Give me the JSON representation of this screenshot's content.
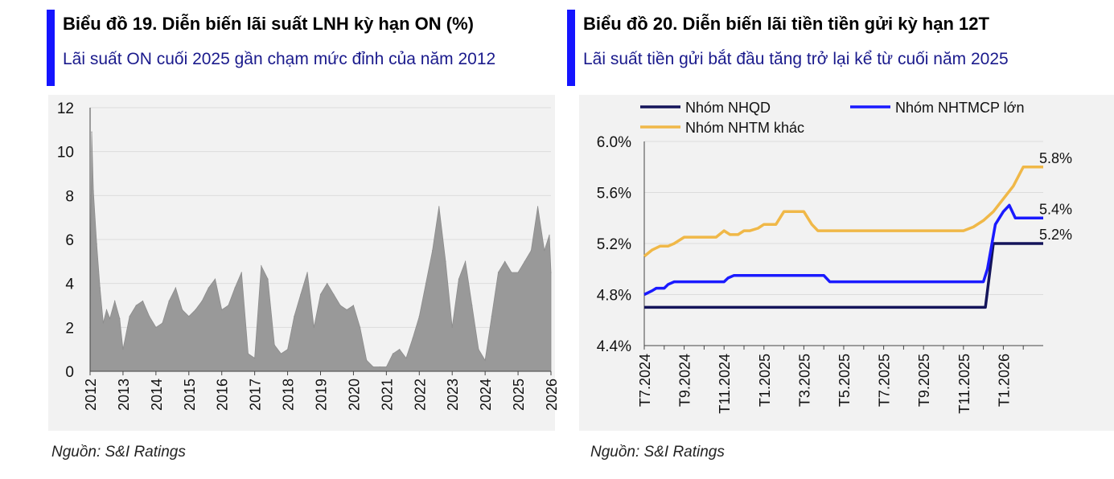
{
  "left": {
    "title": "Biểu đồ 19. Diễn biến lãi suất LNH kỳ hạn ON (%)",
    "subtitle": "Lãi suất ON cuối 2025 gần chạm mức đỉnh của năm 2012",
    "source": "Nguồn: S&I Ratings",
    "accent_color": "#1414ff"
  },
  "right": {
    "title": "Biểu đồ 20. Diễn biến lãi tiền tiền gửi kỳ hạn 12T",
    "subtitle": "Lãi suất tiền gửi bắt đầu tăng trở lại kể từ cuối năm 2025",
    "source": "Nguồn: S&I Ratings",
    "accent_color": "#1414ff"
  },
  "chart_data": [
    {
      "type": "area",
      "title": "Biểu đồ 19. Diễn biến lãi suất LNH kỳ hạn ON (%)",
      "xlabel": "",
      "ylabel": "",
      "ylim": [
        0,
        12
      ],
      "yticks": [
        "0",
        "2",
        "4",
        "6",
        "8",
        "10",
        "12"
      ],
      "xlim": [
        2012,
        2026
      ],
      "xticks": [
        "2012",
        "2013",
        "2014",
        "2015",
        "2016",
        "2017",
        "2018",
        "2019",
        "2020",
        "2021",
        "2022",
        "2023",
        "2024",
        "2025",
        "2026"
      ],
      "grid": true,
      "series": [
        {
          "color": "#999999",
          "x": [
            2012.0,
            2012.05,
            2012.1,
            2012.2,
            2012.3,
            2012.4,
            2012.5,
            2012.6,
            2012.75,
            2012.9,
            2013.0,
            2013.2,
            2013.4,
            2013.6,
            2013.8,
            2014.0,
            2014.2,
            2014.4,
            2014.6,
            2014.8,
            2015.0,
            2015.2,
            2015.4,
            2015.6,
            2015.8,
            2016.0,
            2016.2,
            2016.4,
            2016.6,
            2016.8,
            2017.0,
            2017.2,
            2017.4,
            2017.6,
            2017.8,
            2018.0,
            2018.2,
            2018.4,
            2018.6,
            2018.8,
            2019.0,
            2019.2,
            2019.4,
            2019.6,
            2019.8,
            2020.0,
            2020.2,
            2020.4,
            2020.6,
            2020.8,
            2021.0,
            2021.2,
            2021.4,
            2021.6,
            2021.8,
            2022.0,
            2022.2,
            2022.4,
            2022.6,
            2022.8,
            2023.0,
            2023.2,
            2023.4,
            2023.6,
            2023.8,
            2024.0,
            2024.2,
            2024.4,
            2024.6,
            2024.8,
            2025.0,
            2025.2,
            2025.4,
            2025.6,
            2025.8,
            2025.95,
            2026.0
          ],
          "values": [
            2.0,
            10.9,
            8.2,
            5.8,
            3.8,
            2.2,
            2.8,
            2.4,
            3.2,
            2.4,
            1.0,
            2.5,
            3.0,
            3.2,
            2.5,
            2.0,
            2.2,
            3.2,
            3.8,
            2.8,
            2.5,
            2.8,
            3.2,
            3.8,
            4.2,
            2.8,
            3.0,
            3.8,
            4.5,
            0.8,
            0.6,
            4.8,
            4.2,
            1.2,
            0.8,
            1.0,
            2.5,
            3.5,
            4.5,
            2.0,
            3.5,
            4.0,
            3.5,
            3.0,
            2.8,
            3.0,
            2.0,
            0.5,
            0.2,
            0.2,
            0.2,
            0.8,
            1.0,
            0.6,
            1.5,
            2.5,
            4.0,
            5.5,
            7.5,
            5.0,
            2.0,
            4.2,
            5.0,
            3.0,
            1.0,
            0.5,
            2.5,
            4.5,
            5.0,
            4.5,
            4.5,
            5.0,
            5.5,
            7.5,
            5.5,
            6.2,
            4.5
          ]
        }
      ]
    },
    {
      "type": "line",
      "title": "Biểu đồ 20. Diễn biến lãi tiền tiền gửi kỳ hạn 12T",
      "xlabel": "",
      "ylabel": "",
      "ylim": [
        4.4,
        6.0
      ],
      "yticks": [
        "4.4%",
        "4.8%",
        "5.2%",
        "5.6%",
        "6.0%"
      ],
      "categories": [
        "T7.2024",
        "T8.2024",
        "T9.2024",
        "T10.2024",
        "T11.2024",
        "T12.2024",
        "T1.2025",
        "T2.2025",
        "T3.2025",
        "T4.2025",
        "T5.2025",
        "T6.2025",
        "T7.2025",
        "T8.2025",
        "T9.2025",
        "T10.2025",
        "T11.2025",
        "T12.2025",
        "T1.2026",
        "T2.2026"
      ],
      "xticks": [
        "T7.2024",
        "T9.2024",
        "T11.2024",
        "T1.2025",
        "T3.2025",
        "T5.2025",
        "T7.2025",
        "T9.2025",
        "T11.2025",
        "T1.2026"
      ],
      "legend_position": "top",
      "grid": true,
      "series": [
        {
          "name": "Nhóm NHQD",
          "color": "#14145a",
          "x": [
            0,
            17.1,
            17.5,
            20.0
          ],
          "values": [
            4.7,
            4.7,
            5.2,
            5.2
          ],
          "end_label": "5.2%"
        },
        {
          "name": "Nhóm NHTMCP lớn",
          "color": "#1a1aff",
          "x": [
            0,
            0.4,
            0.6,
            1.0,
            1.2,
            1.5,
            3.0,
            4.0,
            4.2,
            4.5,
            9.0,
            9.3,
            17.0,
            17.2,
            17.6,
            18.0,
            18.3,
            18.6,
            20.0
          ],
          "values": [
            4.8,
            4.83,
            4.85,
            4.85,
            4.88,
            4.9,
            4.9,
            4.9,
            4.93,
            4.95,
            4.95,
            4.9,
            4.9,
            5.0,
            5.35,
            5.45,
            5.5,
            5.4,
            5.4
          ],
          "end_label": "5.4%"
        },
        {
          "name": "Nhóm NHTM khác",
          "color": "#f0b848",
          "x": [
            0,
            0.4,
            0.8,
            1.2,
            1.5,
            2.0,
            2.5,
            3.0,
            3.3,
            3.6,
            4.0,
            4.3,
            4.7,
            5.0,
            5.3,
            5.7,
            6.0,
            6.3,
            6.6,
            7.0,
            8.0,
            8.4,
            8.7,
            9.0,
            10.0,
            16.0,
            16.5,
            17.0,
            17.5,
            18.0,
            18.5,
            19.0,
            19.2,
            20.0
          ],
          "values": [
            5.1,
            5.15,
            5.18,
            5.18,
            5.2,
            5.25,
            5.25,
            5.25,
            5.25,
            5.25,
            5.3,
            5.27,
            5.27,
            5.3,
            5.3,
            5.32,
            5.35,
            5.35,
            5.35,
            5.45,
            5.45,
            5.35,
            5.3,
            5.3,
            5.3,
            5.3,
            5.33,
            5.38,
            5.45,
            5.55,
            5.65,
            5.8,
            5.8,
            5.8
          ],
          "end_label": "5.8%"
        }
      ]
    }
  ]
}
